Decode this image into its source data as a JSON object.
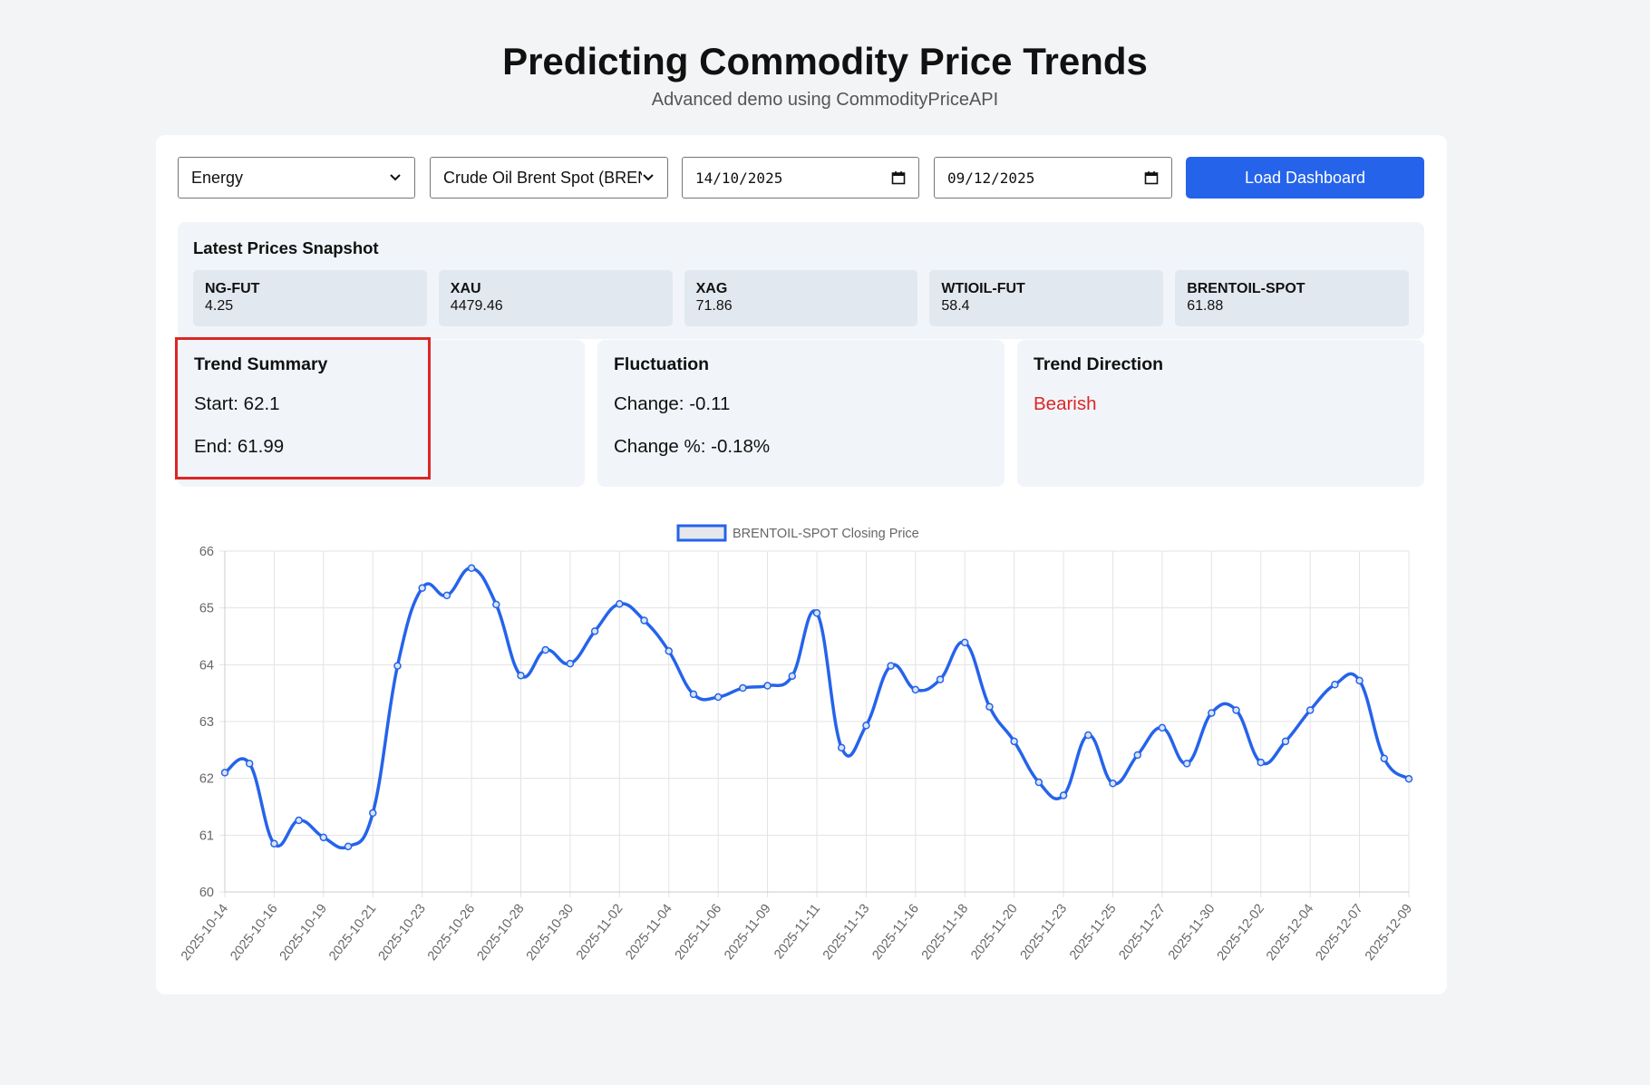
{
  "header": {
    "title": "Predicting Commodity Price Trends",
    "subtitle": "Advanced demo using CommodityPriceAPI"
  },
  "controls": {
    "category": "Energy",
    "commodity": "Crude Oil Brent Spot (BREN",
    "start_date": "14/10/2025",
    "end_date": "09/12/2025",
    "button": "Load Dashboard"
  },
  "snapshot": {
    "title": "Latest Prices Snapshot",
    "items": [
      {
        "symbol": "NG-FUT",
        "price": 4.25
      },
      {
        "symbol": "XAU",
        "price": 4479.46
      },
      {
        "symbol": "XAG",
        "price": 71.86
      },
      {
        "symbol": "WTIOIL-FUT",
        "price": 58.4
      },
      {
        "symbol": "BRENTOIL-SPOT",
        "price": 61.88
      }
    ]
  },
  "cards": [
    {
      "title": "Trend Summary",
      "lines": [
        "Start: 62.1",
        "End: 61.99"
      ]
    },
    {
      "title": "Fluctuation",
      "lines": [
        "Change: -0.11",
        "Change %: -0.18%"
      ]
    },
    {
      "title": "Trend Direction",
      "lines": [
        "Bearish"
      ]
    }
  ],
  "chart_data": {
    "type": "line",
    "categories": [
      "2025-10-14",
      null,
      "2025-10-16",
      null,
      "2025-10-19",
      null,
      "2025-10-21",
      null,
      "2025-10-23",
      null,
      "2025-10-26",
      null,
      "2025-10-28",
      null,
      "2025-10-30",
      null,
      "2025-11-02",
      null,
      "2025-11-04",
      null,
      "2025-11-06",
      null,
      "2025-11-09",
      null,
      "2025-11-11",
      null,
      "2025-11-13",
      null,
      "2025-11-16",
      null,
      "2025-11-18",
      null,
      "2025-11-20",
      null,
      "2025-11-23",
      null,
      "2025-11-25",
      null,
      "2025-11-27",
      null,
      "2025-11-30",
      null,
      "2025-12-02",
      null,
      "2025-12-04",
      null,
      "2025-12-07",
      null,
      "2025-12-09"
    ],
    "series": [
      {
        "name": "BRENTOIL-SPOT Closing Price",
        "color": "#2563eb",
        "values": [
          62.1,
          62.26,
          60.85,
          61.26,
          60.96,
          60.8,
          61.39,
          63.98,
          65.35,
          65.22,
          65.7,
          65.06,
          63.81,
          64.26,
          64.02,
          64.59,
          65.07,
          64.78,
          64.24,
          63.48,
          63.43,
          63.59,
          63.63,
          63.8,
          64.91,
          62.54,
          62.93,
          63.98,
          63.56,
          63.74,
          64.39,
          63.26,
          62.65,
          61.93,
          61.7,
          62.76,
          61.91,
          62.41,
          62.89,
          62.26,
          63.15,
          63.2,
          62.28,
          62.65,
          63.2,
          63.65,
          63.72,
          62.35,
          61.99
        ]
      }
    ],
    "ylim": [
      60,
      66
    ],
    "yticks": [
      60,
      61,
      62,
      63,
      64,
      65,
      66
    ],
    "grid": true,
    "legend": "top"
  }
}
